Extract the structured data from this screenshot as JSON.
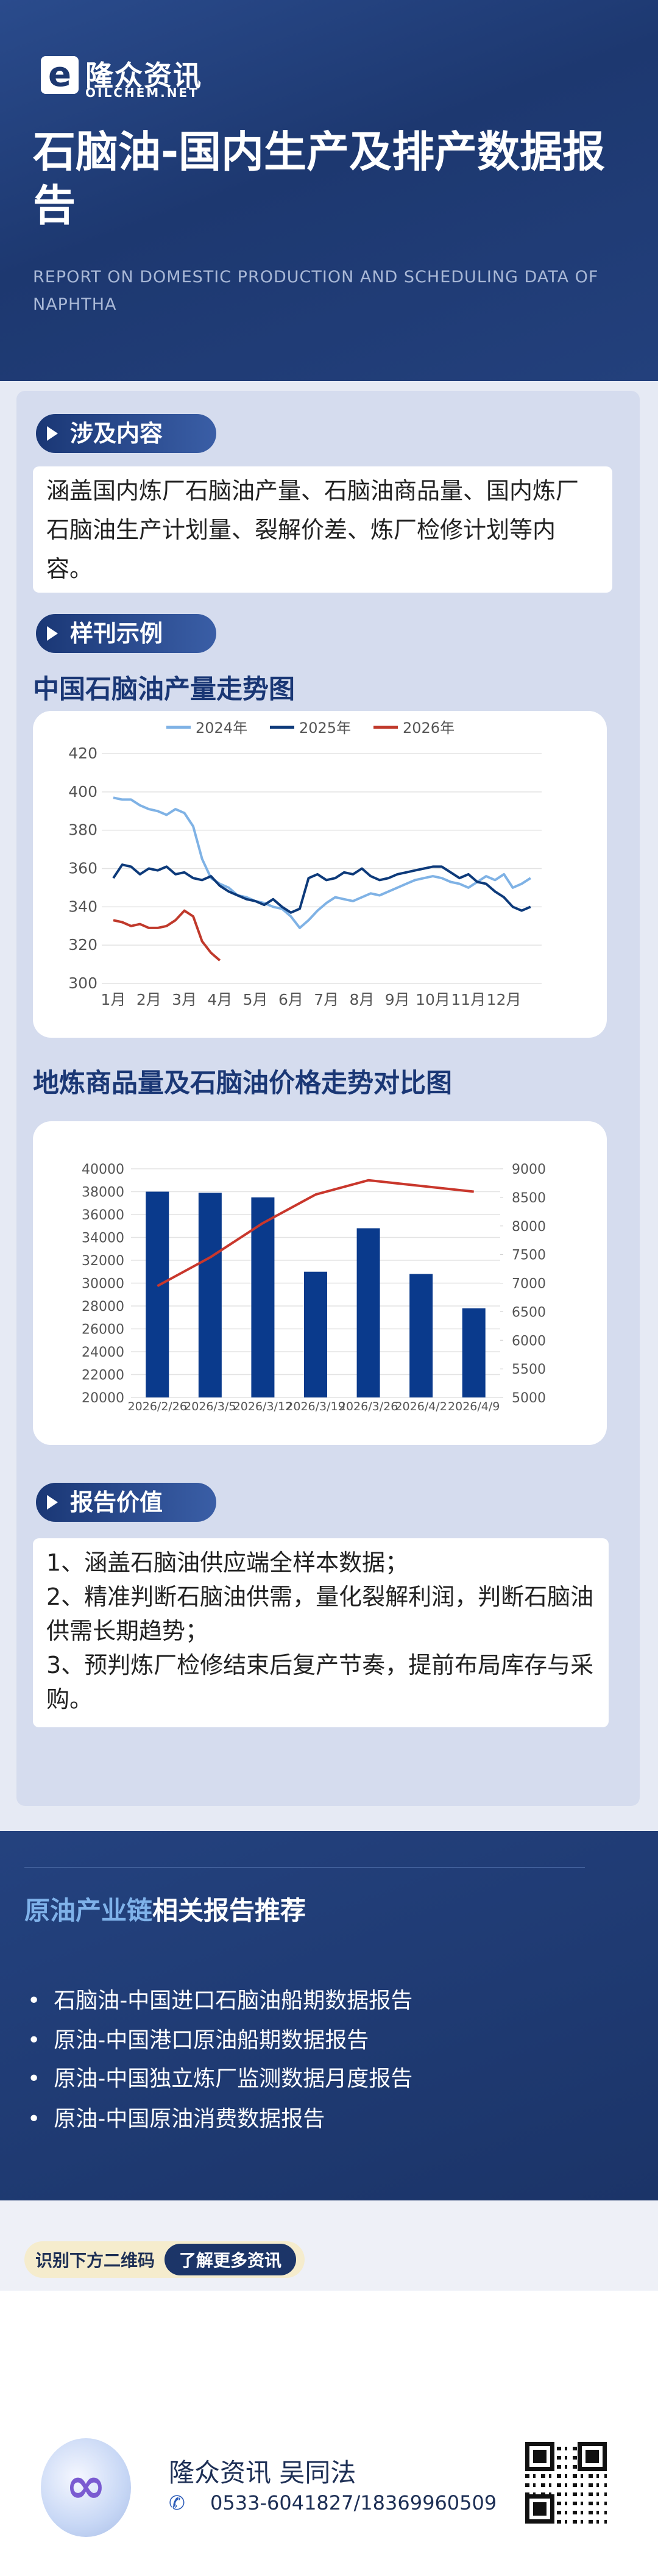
{
  "header": {
    "logo_name": "隆众资讯",
    "logo_en": "OILCHEM.NET",
    "title": "石脑油-国内生产及排产数据报告",
    "subtitle": "REPORT ON DOMESTIC PRODUCTION AND SCHEDULING DATA OF NAPHTHA"
  },
  "scope": {
    "heading": "涉及内容",
    "text": "涵盖国内炼厂石脑油产量、石脑油商品量、国内炼厂石脑油生产计划量、裂解价差、炼厂检修计划等内容。"
  },
  "sample": {
    "heading": "样刊示例"
  },
  "chart_data": [
    {
      "type": "line",
      "title": "中国石脑油产量走势图",
      "categories": [
        "1月",
        null,
        null,
        null,
        "2月",
        null,
        null,
        null,
        "3月",
        null,
        null,
        null,
        "4月",
        null,
        null,
        null,
        "5月",
        null,
        null,
        null,
        "6月",
        null,
        null,
        null,
        "7月",
        null,
        null,
        null,
        "8月",
        null,
        null,
        null,
        "9月",
        null,
        null,
        null,
        "10月",
        null,
        null,
        null,
        "11月",
        null,
        null,
        null,
        "12月",
        null,
        null,
        null
      ],
      "series": [
        {
          "name": "2024年",
          "color": "#7fb2e5",
          "values": [
            397,
            396,
            396,
            393,
            391,
            390,
            388,
            391,
            389,
            382,
            365,
            355,
            352,
            350,
            346,
            345,
            343,
            342,
            340,
            339,
            335,
            329,
            333,
            338,
            342,
            345,
            344,
            343,
            345,
            347,
            346,
            348,
            350,
            352,
            354,
            355,
            356,
            355,
            353,
            352,
            350,
            353,
            356,
            354,
            357,
            350,
            352,
            355
          ]
        },
        {
          "name": "2025年",
          "color": "#0d3a7a",
          "values": [
            355,
            362,
            361,
            357,
            360,
            359,
            361,
            357,
            358,
            355,
            354,
            356,
            351,
            348,
            346,
            344,
            343,
            341,
            344,
            340,
            337,
            339,
            355,
            357,
            354,
            355,
            358,
            357,
            360,
            356,
            354,
            355,
            357,
            358,
            359,
            360,
            361,
            361,
            358,
            355,
            357,
            353,
            352,
            348,
            345,
            340,
            338,
            340
          ]
        },
        {
          "name": "2026年",
          "color": "#c0392b",
          "values": [
            333,
            332,
            330,
            331,
            329,
            329,
            330,
            333,
            338,
            335,
            322,
            316,
            312,
            null,
            null,
            null,
            null,
            null,
            null,
            null,
            null,
            null,
            null,
            null,
            null,
            null,
            null,
            null,
            null,
            null,
            null,
            null,
            null,
            null,
            null,
            null,
            null,
            null,
            null,
            null,
            null,
            null,
            null,
            null,
            null,
            null,
            null,
            null
          ]
        }
      ],
      "ylim": [
        300,
        420
      ],
      "yticks": [
        300,
        320,
        340,
        360,
        380,
        400,
        420
      ],
      "grid": true,
      "legend": "top"
    },
    {
      "type": "bar",
      "title": "地炼商品量及石脑油价格走势对比图",
      "categories": [
        "2026/2/26",
        "2026/3/5",
        "2026/3/12",
        "2026/3/19",
        "2026/3/26",
        "2026/4/2",
        "2026/4/9"
      ],
      "series": [
        {
          "type": "bar",
          "color": "#0a3a8c",
          "values": [
            38000,
            37900,
            37500,
            31000,
            34800,
            30800,
            27800
          ]
        },
        {
          "type": "line",
          "axis": "y2",
          "color": "#c9372c",
          "values": [
            6950,
            7450,
            8050,
            8550,
            8800,
            8700,
            8600
          ]
        }
      ],
      "ylim": [
        20000,
        40000
      ],
      "yticks": [
        20000,
        22000,
        24000,
        26000,
        28000,
        30000,
        32000,
        34000,
        36000,
        38000,
        40000
      ],
      "y2lim": [
        5000,
        9000
      ],
      "y2ticks": [
        5000,
        5500,
        6000,
        6500,
        7000,
        7500,
        8000,
        8500,
        9000
      ],
      "grid": true
    }
  ],
  "value": {
    "heading": "报告价值",
    "items": [
      "1、涵盖石脑油供应端全样本数据；",
      "2、精准判断石脑油供需，量化裂解利润，判断石脑油供需长期趋势；",
      "3、预判炼厂检修结束后复产节奏，提前布局库存与采购。"
    ]
  },
  "recommend": {
    "title_highlight": "原油产业链",
    "title_rest": "相关报告推荐",
    "items": [
      "石脑油-中国进口石脑油船期数据报告",
      "原油-中国港口原油船期数据报告",
      "原油-中国独立炼厂监测数据月度报告",
      "原油-中国原油消费数据报告"
    ]
  },
  "cta": {
    "label": "识别下方二维码",
    "button": "了解更多资讯"
  },
  "footer": {
    "name": "隆众资讯 吴同法",
    "phone": "0533-6041827/18369960509"
  }
}
